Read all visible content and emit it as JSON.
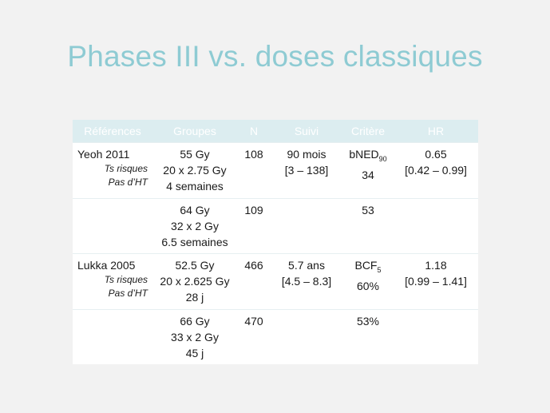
{
  "slide": {
    "title": "Phases III vs. doses classiques"
  },
  "table": {
    "headers": [
      "Références",
      "Groupes",
      "N",
      "Suivi",
      "Critère",
      "HR"
    ],
    "rows": [
      {
        "ref": "Yeoh 2011",
        "notes": [
          "Ts risques",
          "Pas d’HT"
        ],
        "groupes": [
          "55 Gy",
          "20 x 2.75 Gy",
          "4 semaines"
        ],
        "n": "108",
        "suivi": [
          "90 mois",
          "[3 – 138]"
        ],
        "critere_main": "bNED",
        "critere_sub": "90",
        "critere_val": "34",
        "hr": [
          "0.65",
          "[0.42 – 0.99]"
        ]
      },
      {
        "ref": "",
        "notes": [
          "",
          ""
        ],
        "groupes": [
          "64 Gy",
          "32 x 2 Gy",
          "6.5 semaines"
        ],
        "n": "109",
        "suivi": [
          "",
          ""
        ],
        "critere_main": "53",
        "critere_sub": "",
        "critere_val": "",
        "hr": [
          "",
          ""
        ]
      },
      {
        "ref": "Lukka 2005",
        "notes": [
          "Ts risques",
          "Pas d’HT"
        ],
        "groupes": [
          "52.5 Gy",
          "20 x 2.625 Gy",
          "28 j"
        ],
        "n": "466",
        "suivi": [
          "5.7 ans",
          "[4.5 – 8.3]"
        ],
        "critere_main": "BCF",
        "critere_sub": "5",
        "critere_val": "60%",
        "hr": [
          "1.18",
          "[0.99 – 1.41]"
        ]
      },
      {
        "ref": "",
        "notes": [
          "",
          ""
        ],
        "groupes": [
          "66 Gy",
          "33 x 2 Gy",
          "45 j"
        ],
        "n": "470",
        "suivi": [
          "",
          ""
        ],
        "critere_main": "53%",
        "critere_sub": "",
        "critere_val": "",
        "hr": [
          "",
          ""
        ]
      }
    ]
  },
  "colors": {
    "title": "#8ecbd3",
    "header_bg": "#dcedf0",
    "background": "#f2f2f2"
  }
}
